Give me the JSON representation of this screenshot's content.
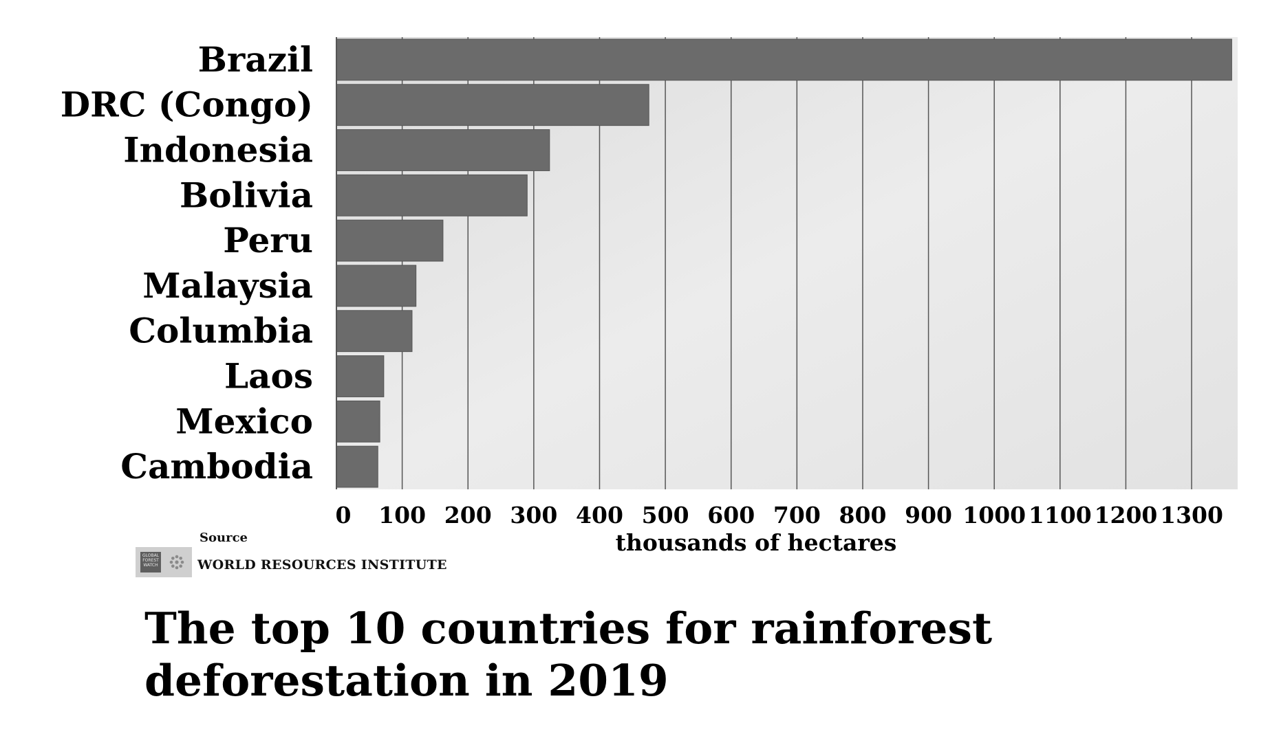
{
  "chart_data": {
    "type": "bar",
    "orientation": "horizontal",
    "categories": [
      "Brazil",
      "DRC (Congo)",
      "Indonesia",
      "Bolivia",
      "Peru",
      "Malaysia",
      "Columbia",
      "Laos",
      "Mexico",
      "Cambodia"
    ],
    "values": [
      1361,
      475,
      324,
      290,
      162,
      121,
      115,
      72,
      66,
      63
    ],
    "xlabel": "thousands of hectares",
    "ylabel": "",
    "xlim": [
      0,
      1370
    ],
    "xticks": [
      0,
      100,
      200,
      300,
      400,
      500,
      600,
      700,
      800,
      900,
      1000,
      1100,
      1200,
      1300
    ],
    "grid": true,
    "bar_color": "#6b6b6b",
    "plot_background": "#e6e6e6",
    "gridline_color": "#555555"
  },
  "source": {
    "label": "Source",
    "organization": "WORLD RESOURCES INSTITUTE",
    "logo_text": "GLOBAL FOREST WATCH"
  },
  "title": "The top 10 countries for rainforest deforestation in 2019"
}
